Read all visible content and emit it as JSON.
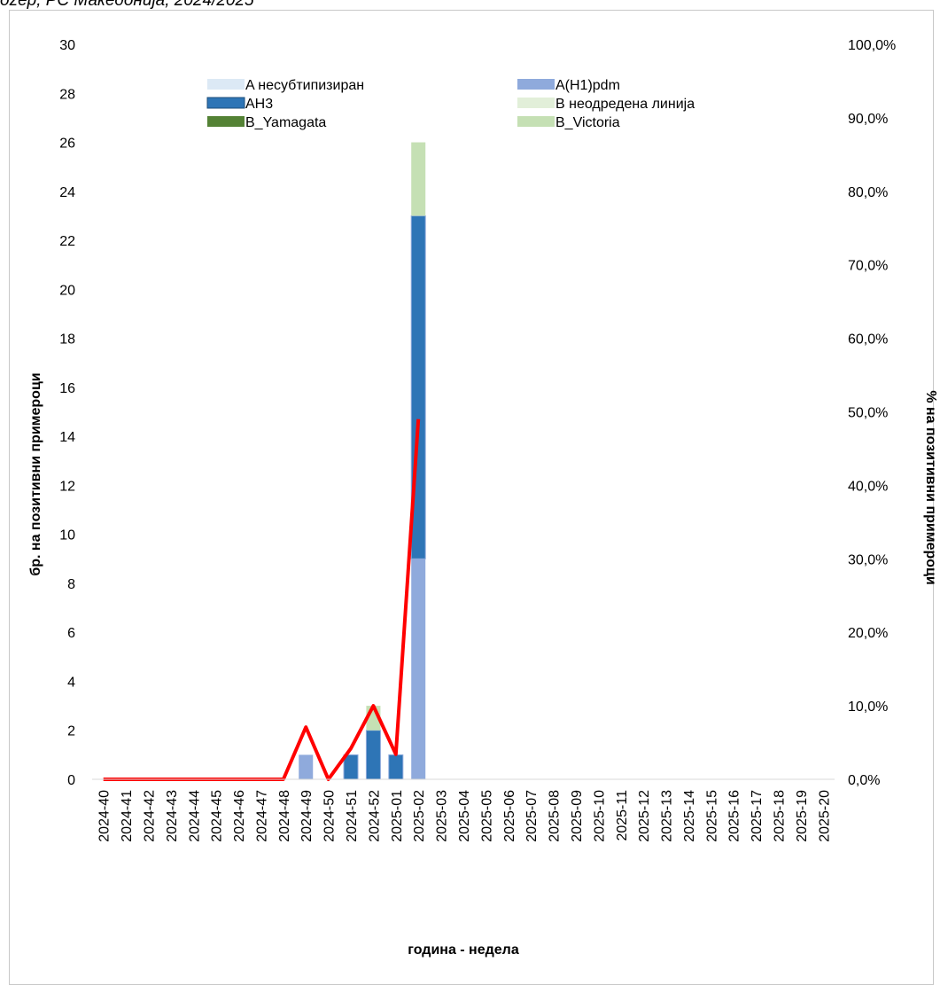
{
  "header": {
    "title_fragment": "ozep, РС Македонија, 2024/2025"
  },
  "chart_data": {
    "type": "bar",
    "stacked": true,
    "categories": [
      "2024-40",
      "2024-41",
      "2024-42",
      "2024-43",
      "2024-44",
      "2024-45",
      "2024-46",
      "2024-47",
      "2024-48",
      "2024-49",
      "2024-50",
      "2024-51",
      "2024-52",
      "2025-01",
      "2025-02",
      "2025-03",
      "2025-04",
      "2025-05",
      "2025-06",
      "2025-07",
      "2025-08",
      "2025-09",
      "2025-10",
      "2025-11",
      "2025-12",
      "2025-13",
      "2025-14",
      "2025-15",
      "2025-16",
      "2025-17",
      "2025-18",
      "2025-19",
      "2025-20"
    ],
    "series": [
      {
        "name": "A несубтипизиран",
        "color": "#dce9f5",
        "values": [
          0,
          0,
          0,
          0,
          0,
          0,
          0,
          0,
          0,
          0,
          0,
          0,
          0,
          0,
          0,
          0,
          0,
          0,
          0,
          0,
          0,
          0,
          0,
          0,
          0,
          0,
          0,
          0,
          0,
          0,
          0,
          0,
          0
        ]
      },
      {
        "name": "A(H1)pdm",
        "color": "#8faadc",
        "values": [
          0,
          0,
          0,
          0,
          0,
          0,
          0,
          0,
          0,
          1,
          0,
          0,
          0,
          0,
          9,
          0,
          0,
          0,
          0,
          0,
          0,
          0,
          0,
          0,
          0,
          0,
          0,
          0,
          0,
          0,
          0,
          0,
          0
        ]
      },
      {
        "name": "AH3",
        "color": "#2e75b6",
        "values": [
          0,
          0,
          0,
          0,
          0,
          0,
          0,
          0,
          0,
          0,
          0,
          1,
          2,
          1,
          14,
          0,
          0,
          0,
          0,
          0,
          0,
          0,
          0,
          0,
          0,
          0,
          0,
          0,
          0,
          0,
          0,
          0,
          0
        ]
      },
      {
        "name": "B неодредена линија",
        "color": "#e2efd9",
        "values": [
          0,
          0,
          0,
          0,
          0,
          0,
          0,
          0,
          0,
          0,
          0,
          0,
          0,
          0,
          0,
          0,
          0,
          0,
          0,
          0,
          0,
          0,
          0,
          0,
          0,
          0,
          0,
          0,
          0,
          0,
          0,
          0,
          0
        ]
      },
      {
        "name": "B_Yamagata",
        "color": "#548235",
        "values": [
          0,
          0,
          0,
          0,
          0,
          0,
          0,
          0,
          0,
          0,
          0,
          0,
          0,
          0,
          0,
          0,
          0,
          0,
          0,
          0,
          0,
          0,
          0,
          0,
          0,
          0,
          0,
          0,
          0,
          0,
          0,
          0,
          0
        ]
      },
      {
        "name": "B_Victoria",
        "color": "#c5e0b4",
        "values": [
          0,
          0,
          0,
          0,
          0,
          0,
          0,
          0,
          0,
          0,
          0,
          0,
          1,
          0,
          3,
          0,
          0,
          0,
          0,
          0,
          0,
          0,
          0,
          0,
          0,
          0,
          0,
          0,
          0,
          0,
          0,
          0,
          0
        ]
      }
    ],
    "line_series": {
      "color": "#ff0000",
      "axis": "right",
      "values": [
        0,
        0,
        0,
        0,
        0,
        0,
        0,
        0,
        0,
        7.1,
        0,
        4.2,
        10,
        3.4,
        49,
        null,
        null,
        null,
        null,
        null,
        null,
        null,
        null,
        null,
        null,
        null,
        null,
        null,
        null,
        null,
        null,
        null,
        null
      ]
    },
    "ylabel": "бр. на позитивни примероци",
    "y2label": "% на позитивни примероци",
    "xlabel": "година - недела",
    "ylim": [
      0,
      30
    ],
    "yticks": [
      0,
      2,
      4,
      6,
      8,
      10,
      12,
      14,
      16,
      18,
      20,
      22,
      24,
      26,
      28,
      30
    ],
    "y2lim": [
      0,
      100
    ],
    "y2ticks": [
      "0,0%",
      "10,0%",
      "20,0%",
      "30,0%",
      "40,0%",
      "50,0%",
      "60,0%",
      "70,0%",
      "80,0%",
      "90,0%",
      "100,0%"
    ],
    "legend_position": "top-center",
    "grid": false
  }
}
